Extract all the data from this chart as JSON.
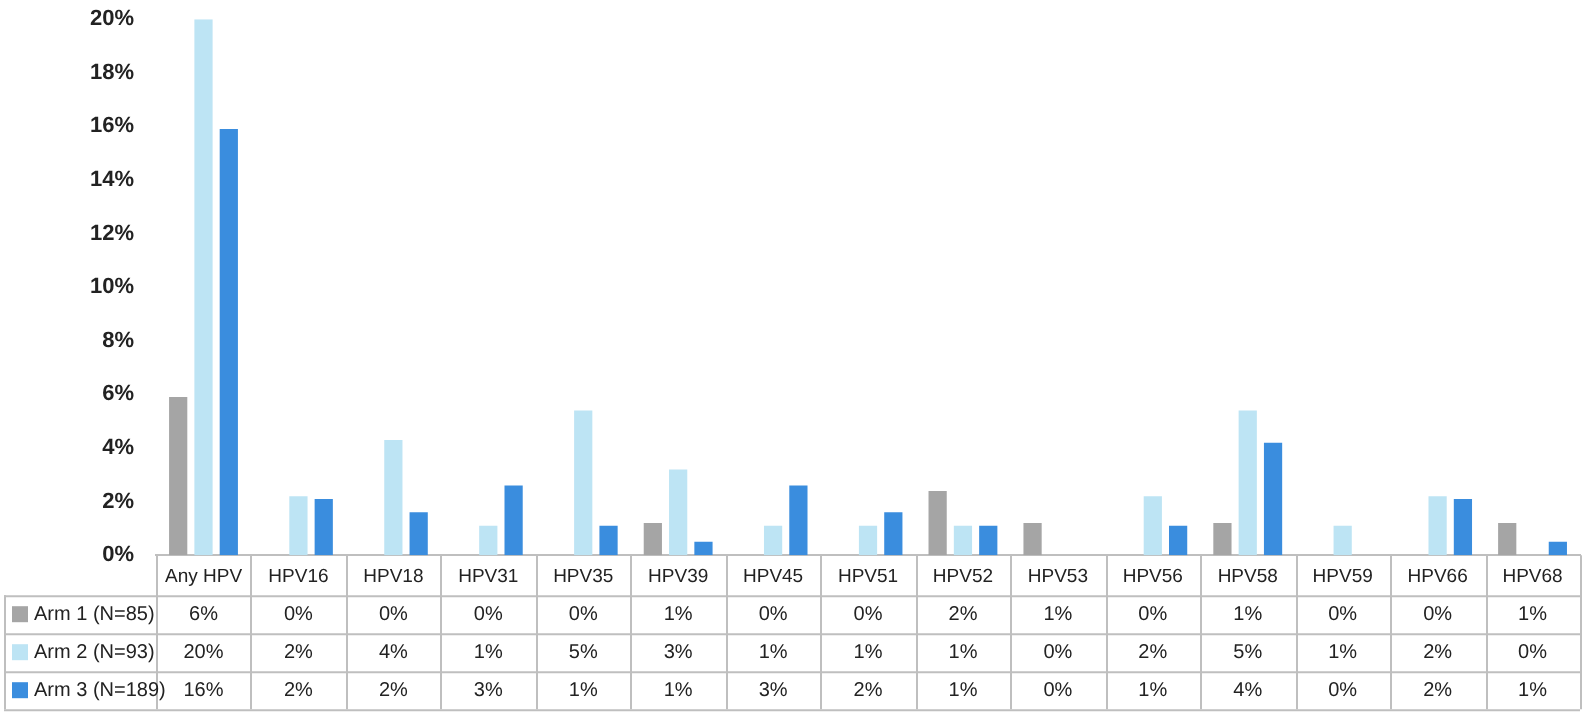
{
  "chart_data": {
    "type": "bar",
    "categories": [
      "Any HPV",
      "HPV16",
      "HPV18",
      "HPV31",
      "HPV35",
      "HPV39",
      "HPV45",
      "HPV51",
      "HPV52",
      "HPV53",
      "HPV56",
      "HPV58",
      "HPV59",
      "HPV66",
      "HPV68"
    ],
    "series": [
      {
        "name": "Arm 1 (N=85)",
        "color": "#a5a5a5",
        "values": [
          5.9,
          0,
          0,
          0,
          0,
          1.2,
          0,
          0,
          2.4,
          1.2,
          0,
          1.2,
          0,
          0,
          1.2
        ],
        "value_labels": [
          "6%",
          "0%",
          "0%",
          "0%",
          "0%",
          "1%",
          "0%",
          "0%",
          "2%",
          "1%",
          "0%",
          "1%",
          "0%",
          "0%",
          "1%"
        ]
      },
      {
        "name": "Arm 2 (N=93)",
        "color": "#bde4f4",
        "values": [
          20,
          2.2,
          4.3,
          1.1,
          5.4,
          3.2,
          1.1,
          1.1,
          1.1,
          0,
          2.2,
          5.4,
          1.1,
          2.2,
          0
        ],
        "value_labels": [
          "20%",
          "2%",
          "4%",
          "1%",
          "5%",
          "3%",
          "1%",
          "1%",
          "1%",
          "0%",
          "2%",
          "5%",
          "1%",
          "2%",
          "0%"
        ]
      },
      {
        "name": "Arm 3 (N=189)",
        "color": "#3a8dde",
        "values": [
          15.9,
          2.1,
          1.6,
          2.6,
          1.1,
          0.5,
          2.6,
          1.6,
          1.1,
          0,
          1.1,
          4.2,
          0,
          2.1,
          0.5
        ],
        "value_labels": [
          "16%",
          "2%",
          "2%",
          "3%",
          "1%",
          "1%",
          "3%",
          "2%",
          "1%",
          "0%",
          "1%",
          "4%",
          "0%",
          "2%",
          "1%"
        ]
      }
    ],
    "ylim": [
      0,
      20
    ],
    "yticks": [
      {
        "value": 0,
        "label": "0%"
      },
      {
        "value": 2,
        "label": "2%"
      },
      {
        "value": 4,
        "label": "4%"
      },
      {
        "value": 6,
        "label": "6%"
      },
      {
        "value": 8,
        "label": "8%"
      },
      {
        "value": 10,
        "label": "10%"
      },
      {
        "value": 12,
        "label": "12%"
      },
      {
        "value": 14,
        "label": "14%"
      },
      {
        "value": 16,
        "label": "16%"
      },
      {
        "value": 18,
        "label": "18%"
      },
      {
        "value": 20,
        "label": "20%"
      }
    ],
    "grid": false,
    "legend": "bottom left"
  }
}
